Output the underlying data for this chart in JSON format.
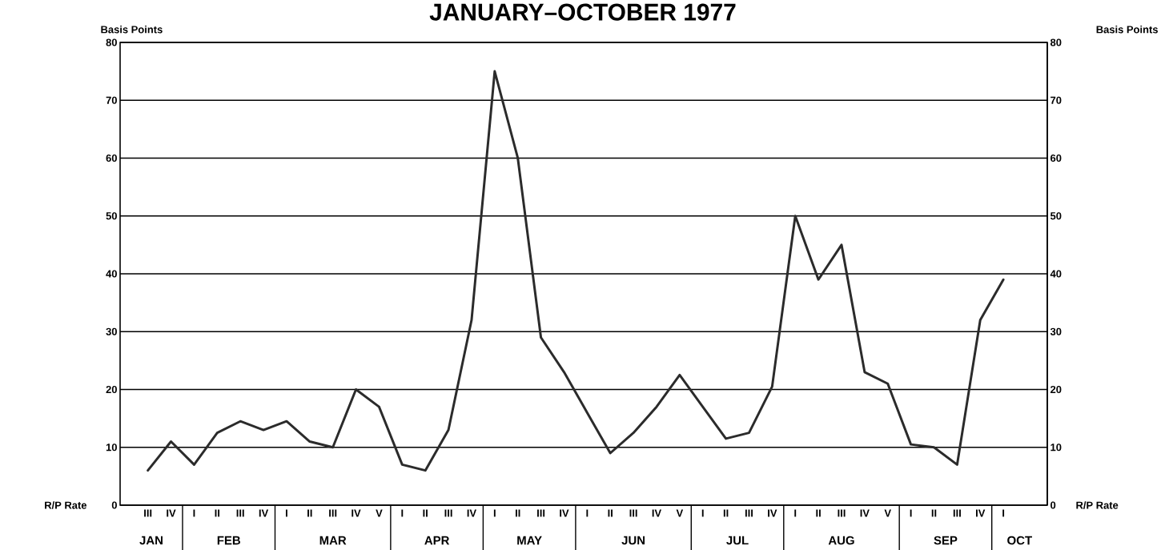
{
  "chart_data": {
    "type": "line",
    "title": "JANUARY–OCTOBER 1977",
    "ylabel": "Basis Points",
    "y2label": "Basis Points",
    "categories": [
      "III",
      "IV",
      "I",
      "II",
      "III",
      "IV",
      "I",
      "II",
      "III",
      "IV",
      "V",
      "I",
      "II",
      "III",
      "IV",
      "I",
      "II",
      "III",
      "IV",
      "I",
      "II",
      "III",
      "IV",
      "V",
      "I",
      "II",
      "III",
      "IV",
      "I",
      "II",
      "III",
      "IV",
      "V",
      "I",
      "II",
      "III",
      "IV",
      "I"
    ],
    "values": [
      6,
      11,
      7,
      12.5,
      14.5,
      13,
      14.5,
      11,
      10,
      20,
      17,
      7,
      6,
      13,
      32,
      75,
      60,
      29,
      23,
      16,
      9,
      12.5,
      17,
      22.5,
      17,
      11.5,
      12.5,
      20.5,
      50,
      39,
      45,
      23,
      21,
      10.5,
      10,
      7,
      32,
      39
    ],
    "color": "#2b2b2b",
    "ylim": [
      0,
      80
    ],
    "yticks": [
      0,
      10,
      20,
      30,
      40,
      50,
      60,
      70,
      80
    ],
    "y2lim": [
      0,
      80
    ],
    "y2ticks": [
      0,
      10,
      20,
      30,
      40,
      50,
      60,
      70,
      80
    ],
    "grid": "y",
    "annotations": [
      "R/P Rate",
      "R/P Rate",
      "JAN",
      "FEB",
      "MAR",
      "APR",
      "MAY",
      "JUN",
      "JUL",
      "AUG",
      "SEP",
      "OCT"
    ]
  }
}
